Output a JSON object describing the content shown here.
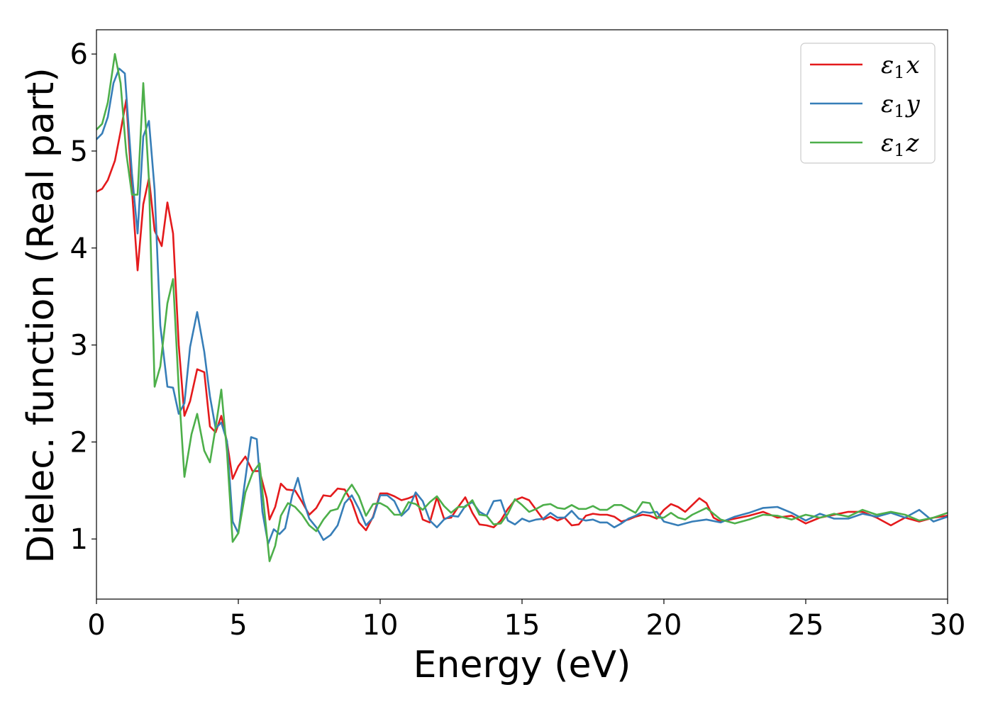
{
  "chart_data": {
    "type": "line",
    "xlabel": "Energy (eV)",
    "ylabel": "Dielec. function (Real part)",
    "xlim": [
      0,
      30
    ],
    "ylim": [
      0.38,
      6.25
    ],
    "xticks": [
      0,
      5,
      10,
      15,
      20,
      25,
      30
    ],
    "yticks": [
      1,
      2,
      3,
      4,
      5,
      6
    ],
    "grid": false,
    "legend_position": "top-right",
    "series": [
      {
        "name": "ε1x",
        "legend": {
          "main": "ε",
          "sub": "1",
          "var": "x"
        },
        "color": "#e41a1c",
        "x": [
          0,
          0.2,
          0.4,
          0.65,
          0.85,
          1.05,
          1.25,
          1.45,
          1.65,
          1.85,
          2.05,
          2.3,
          2.5,
          2.7,
          2.9,
          3.1,
          3.3,
          3.55,
          3.8,
          4.0,
          4.2,
          4.4,
          4.6,
          4.8,
          5.0,
          5.25,
          5.5,
          5.75,
          6.0,
          6.1,
          6.3,
          6.5,
          6.7,
          7.0,
          7.25,
          7.5,
          7.75,
          8.0,
          8.25,
          8.5,
          8.75,
          9.0,
          9.25,
          9.5,
          9.75,
          10.0,
          10.25,
          10.5,
          10.75,
          11.0,
          11.25,
          11.5,
          11.75,
          12.0,
          12.25,
          12.5,
          12.75,
          13.0,
          13.25,
          13.5,
          13.75,
          14.0,
          14.25,
          14.5,
          14.75,
          15.0,
          15.25,
          15.5,
          15.75,
          16.0,
          16.25,
          16.5,
          16.75,
          17.0,
          17.25,
          17.5,
          17.75,
          18.0,
          18.25,
          18.5,
          18.75,
          19.0,
          19.25,
          19.5,
          19.75,
          20.0,
          20.25,
          20.5,
          20.75,
          21.0,
          21.25,
          21.5,
          21.75,
          22.0,
          22.5,
          23.0,
          23.5,
          24.0,
          24.5,
          25.0,
          25.5,
          26.0,
          26.5,
          27.0,
          27.5,
          28.0,
          28.5,
          29.0,
          29.5,
          30.0
        ],
        "y": [
          4.58,
          4.61,
          4.7,
          4.9,
          5.2,
          5.53,
          4.6,
          3.77,
          4.45,
          4.72,
          4.18,
          4.02,
          4.47,
          4.15,
          3.0,
          2.27,
          2.42,
          2.75,
          2.72,
          2.16,
          2.1,
          2.27,
          2.0,
          1.62,
          1.75,
          1.85,
          1.7,
          1.7,
          1.42,
          1.2,
          1.33,
          1.57,
          1.51,
          1.5,
          1.38,
          1.25,
          1.32,
          1.45,
          1.44,
          1.52,
          1.51,
          1.38,
          1.17,
          1.09,
          1.23,
          1.47,
          1.47,
          1.44,
          1.4,
          1.42,
          1.45,
          1.2,
          1.17,
          1.43,
          1.21,
          1.22,
          1.33,
          1.43,
          1.27,
          1.15,
          1.14,
          1.12,
          1.19,
          1.31,
          1.4,
          1.43,
          1.4,
          1.3,
          1.2,
          1.23,
          1.19,
          1.22,
          1.14,
          1.15,
          1.24,
          1.26,
          1.25,
          1.25,
          1.23,
          1.18,
          1.2,
          1.23,
          1.25,
          1.24,
          1.21,
          1.3,
          1.36,
          1.33,
          1.28,
          1.35,
          1.42,
          1.37,
          1.22,
          1.18,
          1.21,
          1.24,
          1.28,
          1.22,
          1.24,
          1.16,
          1.22,
          1.25,
          1.28,
          1.28,
          1.22,
          1.14,
          1.22,
          1.18,
          1.22,
          1.24
        ]
      },
      {
        "name": "ε1y",
        "legend": {
          "main": "ε",
          "sub": "1",
          "var": "y"
        },
        "color": "#377eb8",
        "x": [
          0,
          0.2,
          0.4,
          0.6,
          0.8,
          1.0,
          1.25,
          1.45,
          1.65,
          1.85,
          2.05,
          2.25,
          2.5,
          2.7,
          2.9,
          3.1,
          3.3,
          3.55,
          3.8,
          4.0,
          4.2,
          4.4,
          4.6,
          4.8,
          5.0,
          5.2,
          5.45,
          5.65,
          5.85,
          6.05,
          6.25,
          6.45,
          6.65,
          6.9,
          7.1,
          7.3,
          7.5,
          7.75,
          8.0,
          8.25,
          8.5,
          8.75,
          9.0,
          9.25,
          9.5,
          9.75,
          10.0,
          10.25,
          10.5,
          10.75,
          11.0,
          11.25,
          11.5,
          11.75,
          12.0,
          12.25,
          12.5,
          12.75,
          13.0,
          13.25,
          13.5,
          13.75,
          14.0,
          14.25,
          14.5,
          14.75,
          15.0,
          15.25,
          15.5,
          15.75,
          16.0,
          16.25,
          16.5,
          16.75,
          17.0,
          17.25,
          17.5,
          17.75,
          18.0,
          18.25,
          18.5,
          18.75,
          19.0,
          19.25,
          19.5,
          19.75,
          20.0,
          20.5,
          21.0,
          21.5,
          22.0,
          22.5,
          23.0,
          23.5,
          24.0,
          24.5,
          25.0,
          25.5,
          26.0,
          26.5,
          27.0,
          27.5,
          28.0,
          28.5,
          29.0,
          29.5,
          30.0
        ],
        "y": [
          5.12,
          5.18,
          5.35,
          5.7,
          5.85,
          5.8,
          4.77,
          4.15,
          5.15,
          5.31,
          4.6,
          3.2,
          2.57,
          2.56,
          2.29,
          2.4,
          2.98,
          3.34,
          2.93,
          2.47,
          2.14,
          2.2,
          2.01,
          1.18,
          1.06,
          1.52,
          2.05,
          2.03,
          1.28,
          0.95,
          1.1,
          1.05,
          1.11,
          1.45,
          1.63,
          1.39,
          1.21,
          1.12,
          0.99,
          1.04,
          1.14,
          1.37,
          1.45,
          1.31,
          1.14,
          1.22,
          1.45,
          1.45,
          1.39,
          1.24,
          1.31,
          1.48,
          1.39,
          1.19,
          1.12,
          1.2,
          1.24,
          1.23,
          1.34,
          1.38,
          1.28,
          1.24,
          1.39,
          1.4,
          1.19,
          1.15,
          1.21,
          1.18,
          1.2,
          1.21,
          1.27,
          1.22,
          1.22,
          1.29,
          1.21,
          1.19,
          1.2,
          1.17,
          1.17,
          1.12,
          1.16,
          1.21,
          1.24,
          1.28,
          1.27,
          1.28,
          1.18,
          1.14,
          1.18,
          1.2,
          1.17,
          1.23,
          1.27,
          1.32,
          1.33,
          1.27,
          1.19,
          1.26,
          1.21,
          1.21,
          1.26,
          1.23,
          1.27,
          1.22,
          1.3,
          1.18,
          1.23
        ]
      },
      {
        "name": "ε1z",
        "legend": {
          "main": "ε",
          "sub": "1",
          "var": "z"
        },
        "color": "#4daf4a",
        "x": [
          0,
          0.2,
          0.4,
          0.65,
          0.85,
          1.05,
          1.25,
          1.45,
          1.65,
          1.85,
          2.05,
          2.25,
          2.5,
          2.7,
          2.9,
          3.1,
          3.35,
          3.55,
          3.8,
          4.0,
          4.2,
          4.4,
          4.6,
          4.8,
          5.0,
          5.25,
          5.5,
          5.75,
          5.95,
          6.1,
          6.3,
          6.5,
          6.75,
          7.0,
          7.25,
          7.5,
          7.75,
          8.0,
          8.25,
          8.5,
          8.75,
          9.0,
          9.25,
          9.5,
          9.75,
          10.0,
          10.25,
          10.5,
          10.75,
          11.0,
          11.25,
          11.5,
          11.75,
          12.0,
          12.25,
          12.5,
          12.75,
          13.0,
          13.25,
          13.5,
          13.75,
          14.0,
          14.25,
          14.5,
          14.75,
          15.0,
          15.25,
          15.5,
          15.75,
          16.0,
          16.25,
          16.5,
          16.75,
          17.0,
          17.25,
          17.5,
          17.75,
          18.0,
          18.25,
          18.5,
          18.75,
          19.0,
          19.25,
          19.5,
          19.75,
          20.0,
          20.25,
          20.5,
          20.75,
          21.0,
          21.5,
          22.0,
          22.5,
          23.0,
          23.5,
          24.0,
          24.5,
          25.0,
          25.5,
          26.0,
          26.5,
          27.0,
          27.5,
          28.0,
          28.5,
          29.0,
          29.5,
          30.0
        ],
        "y": [
          5.22,
          5.28,
          5.5,
          6.0,
          5.7,
          4.98,
          4.55,
          4.55,
          5.7,
          4.7,
          2.57,
          2.78,
          3.43,
          3.68,
          2.55,
          1.64,
          2.08,
          2.29,
          1.91,
          1.79,
          2.15,
          2.54,
          1.9,
          0.97,
          1.06,
          1.48,
          1.68,
          1.78,
          1.2,
          0.77,
          0.93,
          1.24,
          1.37,
          1.33,
          1.25,
          1.14,
          1.08,
          1.2,
          1.29,
          1.31,
          1.46,
          1.56,
          1.44,
          1.24,
          1.36,
          1.37,
          1.33,
          1.25,
          1.25,
          1.38,
          1.36,
          1.3,
          1.38,
          1.44,
          1.34,
          1.27,
          1.33,
          1.33,
          1.4,
          1.25,
          1.24,
          1.15,
          1.16,
          1.26,
          1.41,
          1.35,
          1.28,
          1.31,
          1.35,
          1.36,
          1.32,
          1.31,
          1.35,
          1.31,
          1.31,
          1.34,
          1.3,
          1.3,
          1.35,
          1.35,
          1.31,
          1.27,
          1.38,
          1.37,
          1.22,
          1.22,
          1.27,
          1.22,
          1.2,
          1.25,
          1.32,
          1.2,
          1.16,
          1.2,
          1.25,
          1.24,
          1.2,
          1.25,
          1.22,
          1.26,
          1.23,
          1.3,
          1.25,
          1.28,
          1.25,
          1.19,
          1.22,
          1.27
        ]
      }
    ]
  }
}
